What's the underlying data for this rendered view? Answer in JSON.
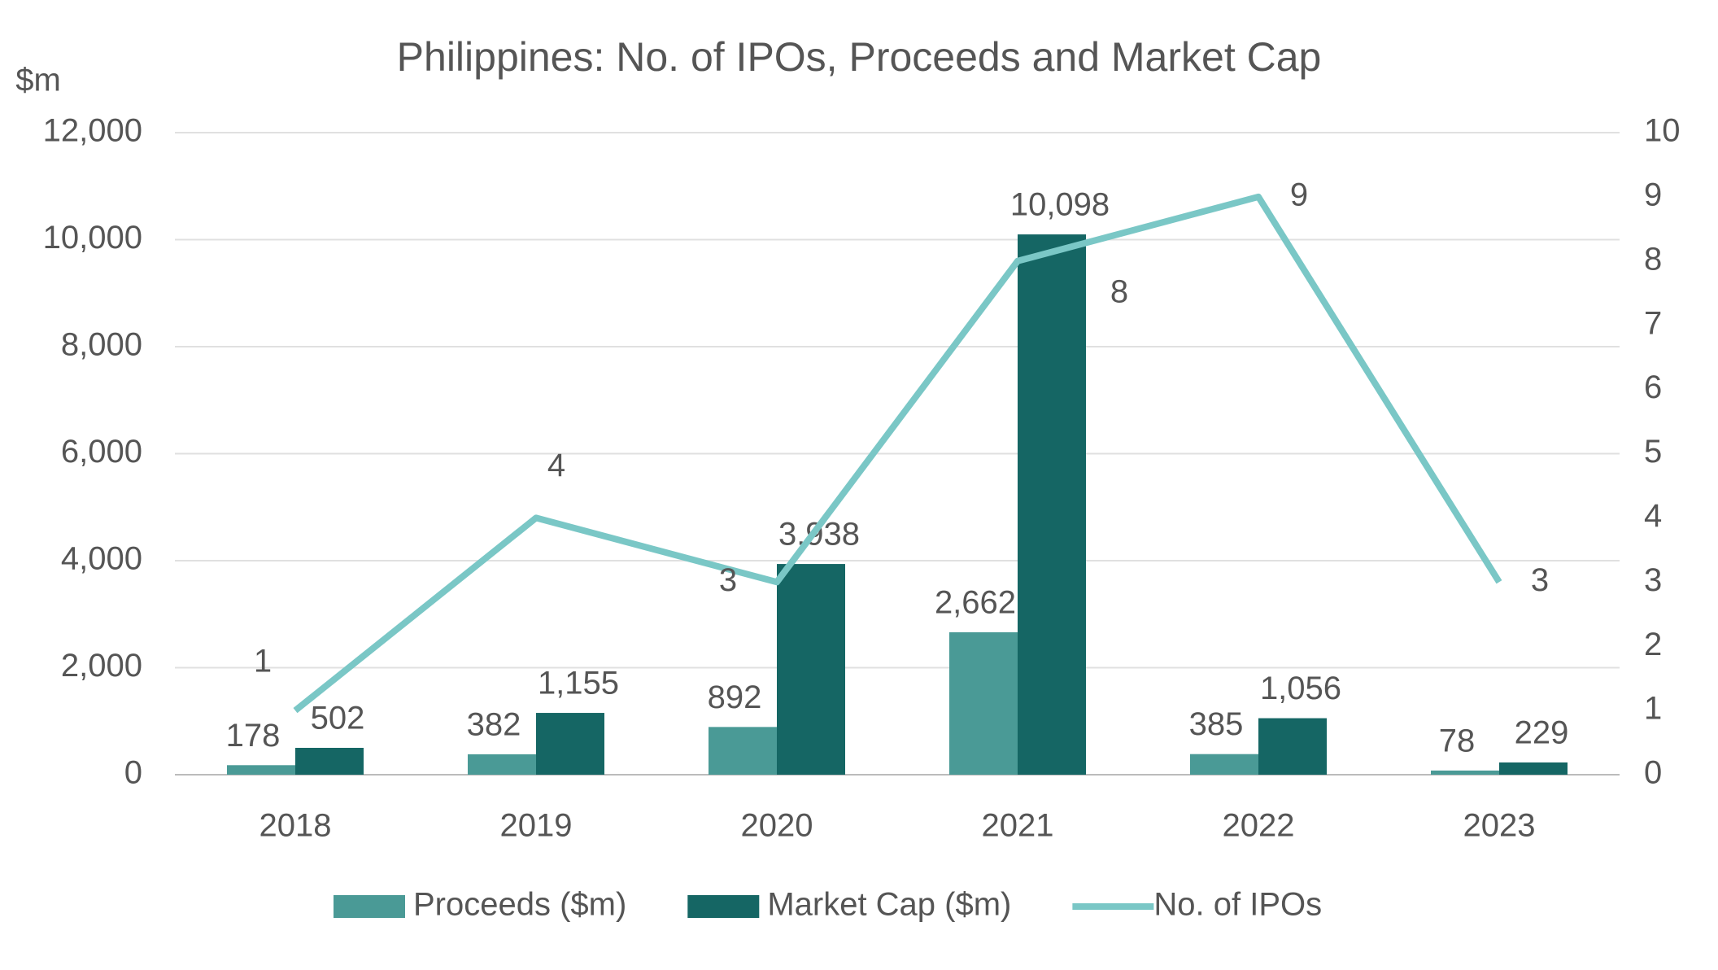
{
  "chart_data": {
    "type": "bar_line",
    "title": "Philippines: No. of IPOs, Proceeds and Market Cap",
    "ylabel": "$m",
    "categories": [
      "2018",
      "2019",
      "2020",
      "2021",
      "2022",
      "2023"
    ],
    "series": [
      {
        "name": "Proceeds ($m)",
        "type": "bar",
        "color": "#4a9a96",
        "values": [
          178,
          382,
          892,
          2662,
          385,
          78
        ],
        "value_labels": [
          "178",
          "382",
          "892",
          "2,662",
          "385",
          "78"
        ]
      },
      {
        "name": "Market Cap ($m)",
        "type": "bar",
        "color": "#156664",
        "values": [
          502,
          1155,
          3938,
          10098,
          1056,
          229
        ],
        "value_labels": [
          "502",
          "1,155",
          "3,938",
          "10,098",
          "1,056",
          "229"
        ]
      },
      {
        "name": "No. of IPOs",
        "type": "line",
        "axis": "y2",
        "color": "#7ac7c6",
        "values": [
          1,
          4,
          3,
          8,
          9,
          3
        ]
      }
    ],
    "ylim": [
      0,
      12000
    ],
    "yticks": [
      0,
      {
        "value": 2000,
        "label": "2,000"
      },
      {
        "value": 4000,
        "label": "4,000"
      },
      {
        "value": 6000,
        "label": "6,000"
      },
      {
        "value": 8000,
        "label": "8,000"
      },
      {
        "value": 10000,
        "label": "10,000"
      },
      {
        "value": 12000,
        "label": "12,000"
      }
    ],
    "y2lim": [
      0,
      10
    ],
    "y2ticks": [
      0,
      1,
      2,
      3,
      4,
      5,
      6,
      7,
      8,
      9,
      10
    ],
    "grid": true,
    "legend": "bottom"
  }
}
